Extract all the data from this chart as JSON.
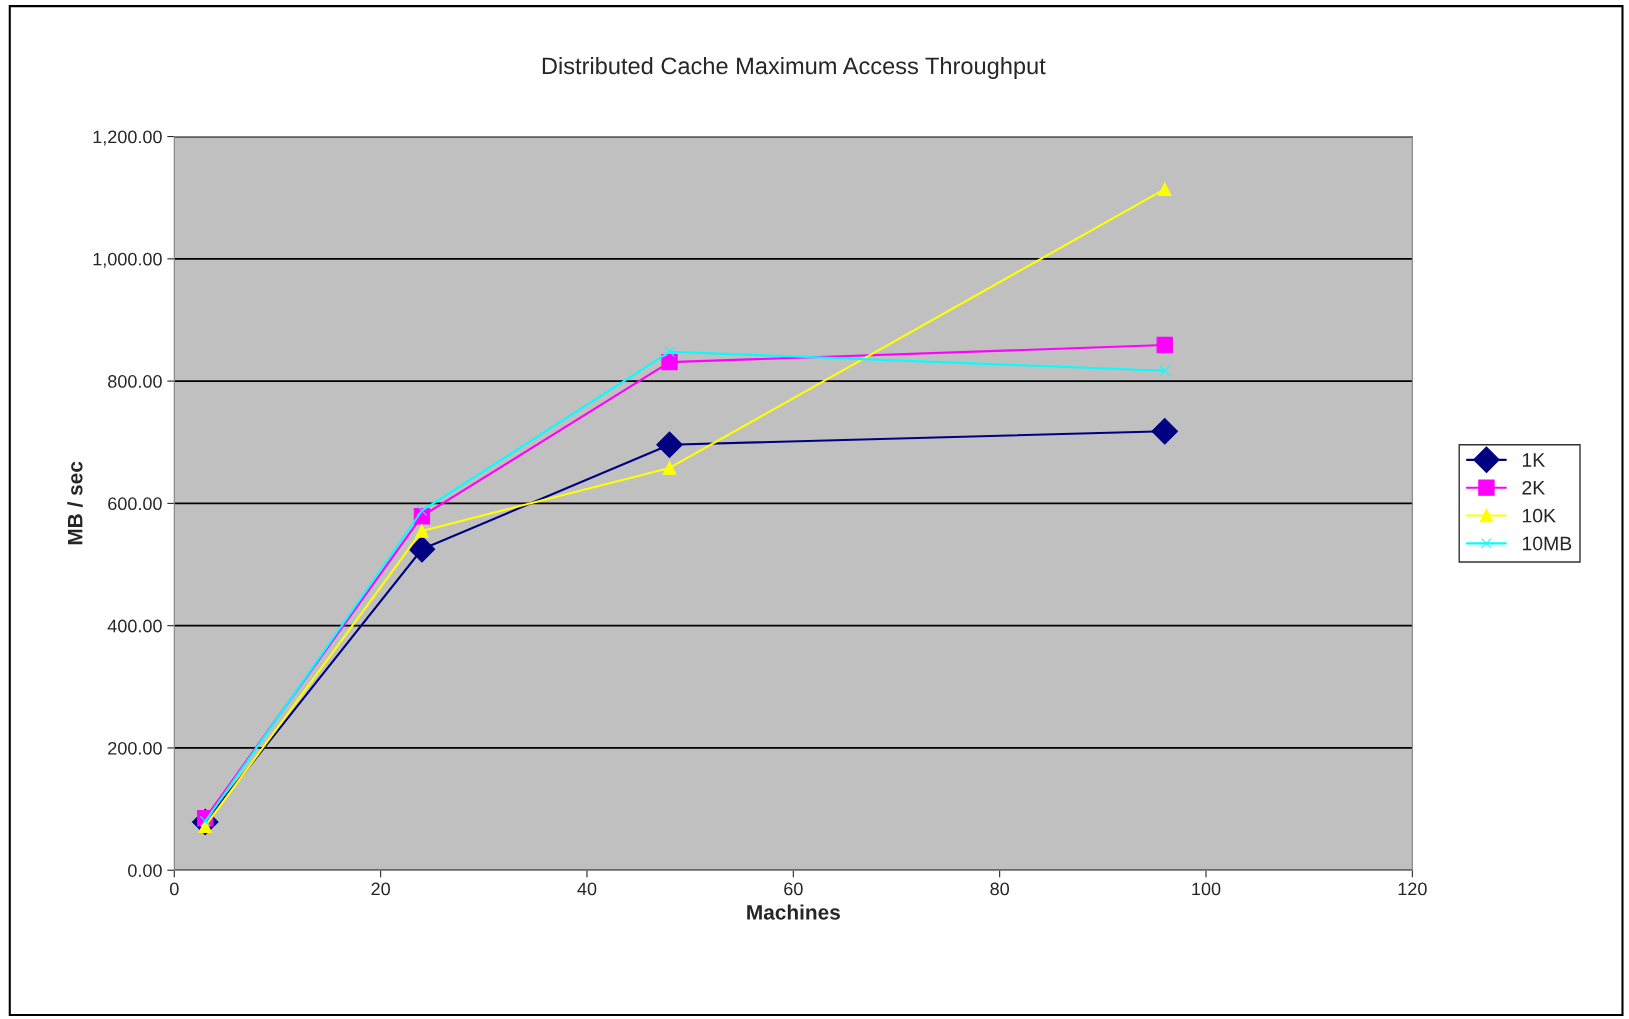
{
  "chart_data": {
    "type": "line",
    "title": "Distributed Cache Maximum Access Throughput",
    "xlabel": "Machines",
    "ylabel": "MB / sec",
    "x": [
      3,
      24,
      48,
      96
    ],
    "series": [
      {
        "name": "1K",
        "color": "#000080",
        "marker": "diamond",
        "values": [
          79,
          525,
          696,
          718
        ]
      },
      {
        "name": "2K",
        "color": "#ff00ff",
        "marker": "square",
        "values": [
          85,
          579,
          831,
          859
        ]
      },
      {
        "name": "10K",
        "color": "#ffff00",
        "marker": "triangle",
        "values": [
          72,
          555,
          658,
          1114
        ]
      },
      {
        "name": "10MB",
        "color": "#00ffff",
        "marker": "cross",
        "values": [
          80,
          588,
          848,
          817
        ]
      }
    ],
    "xlim": [
      0,
      120
    ],
    "xticks": [
      0,
      20,
      40,
      60,
      80,
      100,
      120
    ],
    "ylim": [
      0,
      1200
    ],
    "yticks": [
      {
        "value": 0,
        "label": "0.00"
      },
      {
        "value": 200,
        "label": "200.00"
      },
      {
        "value": 400,
        "label": "400.00"
      },
      {
        "value": 600,
        "label": "600.00"
      },
      {
        "value": 800,
        "label": "800.00"
      },
      {
        "value": 1000,
        "label": "1,000.00"
      },
      {
        "value": 1200,
        "label": "1,200.00"
      }
    ],
    "grid": "y",
    "legend": "right",
    "line_style": "solid"
  }
}
